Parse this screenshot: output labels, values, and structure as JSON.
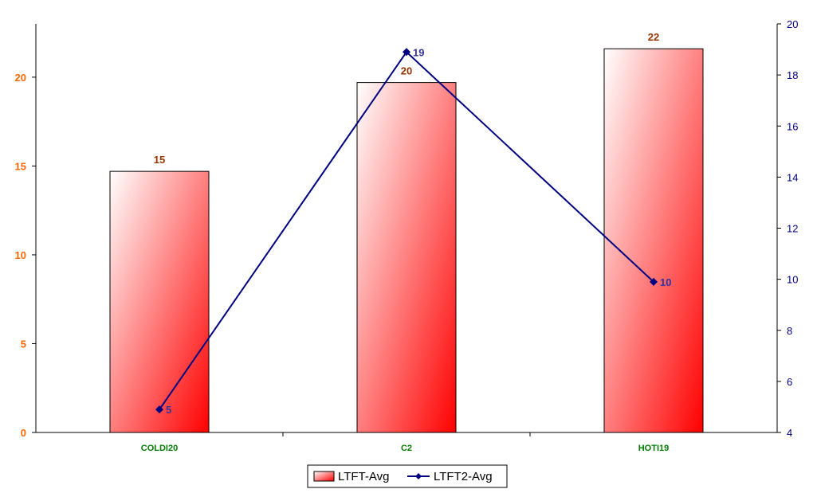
{
  "chart_data": {
    "type": "bar",
    "categories": [
      "COLDI20",
      "C2",
      "HOTI19"
    ],
    "series": [
      {
        "name": "LTFT-Avg",
        "type": "bar",
        "axis": "left",
        "values": [
          14.7,
          19.7,
          21.6
        ],
        "labels": [
          "15",
          "20",
          "22"
        ]
      },
      {
        "name": "LTFT2-Avg",
        "type": "line",
        "axis": "right",
        "values": [
          4.9,
          18.9,
          9.9
        ],
        "labels": [
          "5",
          "19",
          "10"
        ]
      }
    ],
    "y_left": {
      "min": 0,
      "max": 23,
      "ticks": [
        0,
        5,
        10,
        15,
        20
      ]
    },
    "y_right": {
      "min": 4,
      "max": 20,
      "ticks": [
        4,
        6,
        8,
        10,
        12,
        14,
        16,
        18,
        20
      ]
    },
    "grid": false,
    "legend_position": "bottom-center",
    "colors": {
      "bar_gradient_start": "#ffffff",
      "bar_gradient_end": "#ff0000",
      "bar_outline": "#000000",
      "line": "#000080",
      "left_axis_ticks": "#ff6600",
      "right_axis_ticks": "#000080",
      "category_labels": "#007a00",
      "bar_data_labels": "#993300",
      "line_data_labels": "#333399"
    }
  }
}
